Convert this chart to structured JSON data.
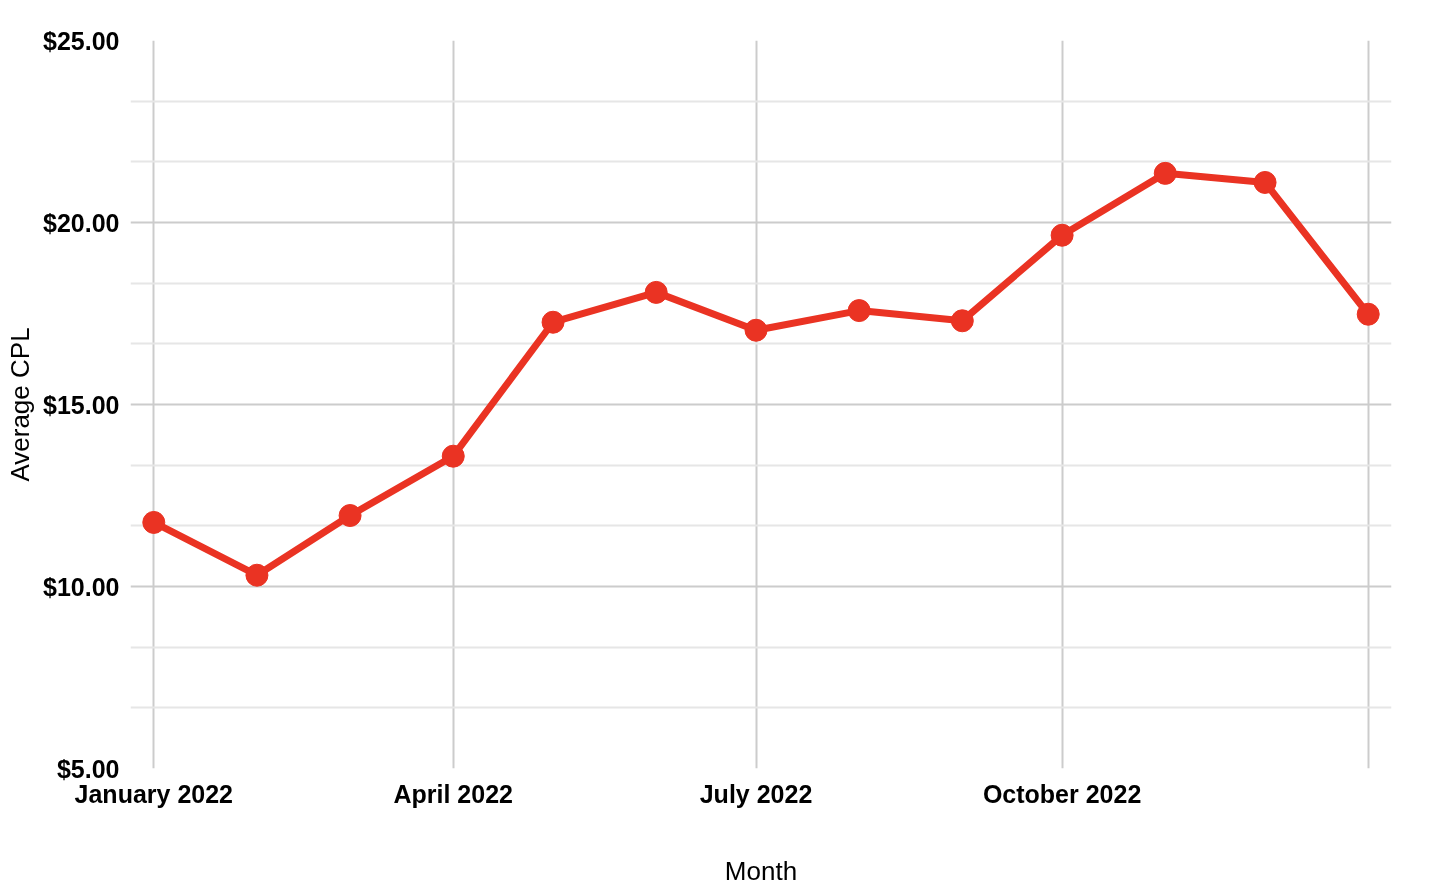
{
  "chart_data": {
    "type": "line",
    "xlabel": "Month",
    "ylabel": "Average CPL",
    "x": [
      "2022-01",
      "2022-02",
      "2022-03",
      "2022-04",
      "2022-05",
      "2022-06",
      "2022-07",
      "2022-08",
      "2022-09",
      "2022-10",
      "2022-11",
      "2022-12",
      "2023-01"
    ],
    "series": [
      {
        "color": "#ea3323",
        "values": [
          11.76,
          10.31,
          11.95,
          13.58,
          17.26,
          18.08,
          17.04,
          17.58,
          17.3,
          19.65,
          21.35,
          21.1,
          17.48
        ]
      }
    ],
    "xlim": [
      "2021-12-25",
      "2023-01-08"
    ],
    "xticks": [
      {
        "value": "2022-01",
        "label": "January 2022"
      },
      {
        "value": "2022-04",
        "label": "April 2022"
      },
      {
        "value": "2022-07",
        "label": "July 2022"
      },
      {
        "value": "2022-10",
        "label": "October 2022"
      },
      {
        "value": "2023-01",
        "label": null
      }
    ],
    "ylim": [
      5,
      25
    ],
    "yticks": [
      {
        "value": 5,
        "label": "$5.00"
      },
      {
        "value": 10,
        "label": "$10.00"
      },
      {
        "value": 15,
        "label": "$15.00"
      },
      {
        "value": 20,
        "label": "$20.00"
      },
      {
        "value": 25,
        "label": "$25.00"
      }
    ],
    "grid": true,
    "marker": "circle",
    "line_style": "solid"
  }
}
